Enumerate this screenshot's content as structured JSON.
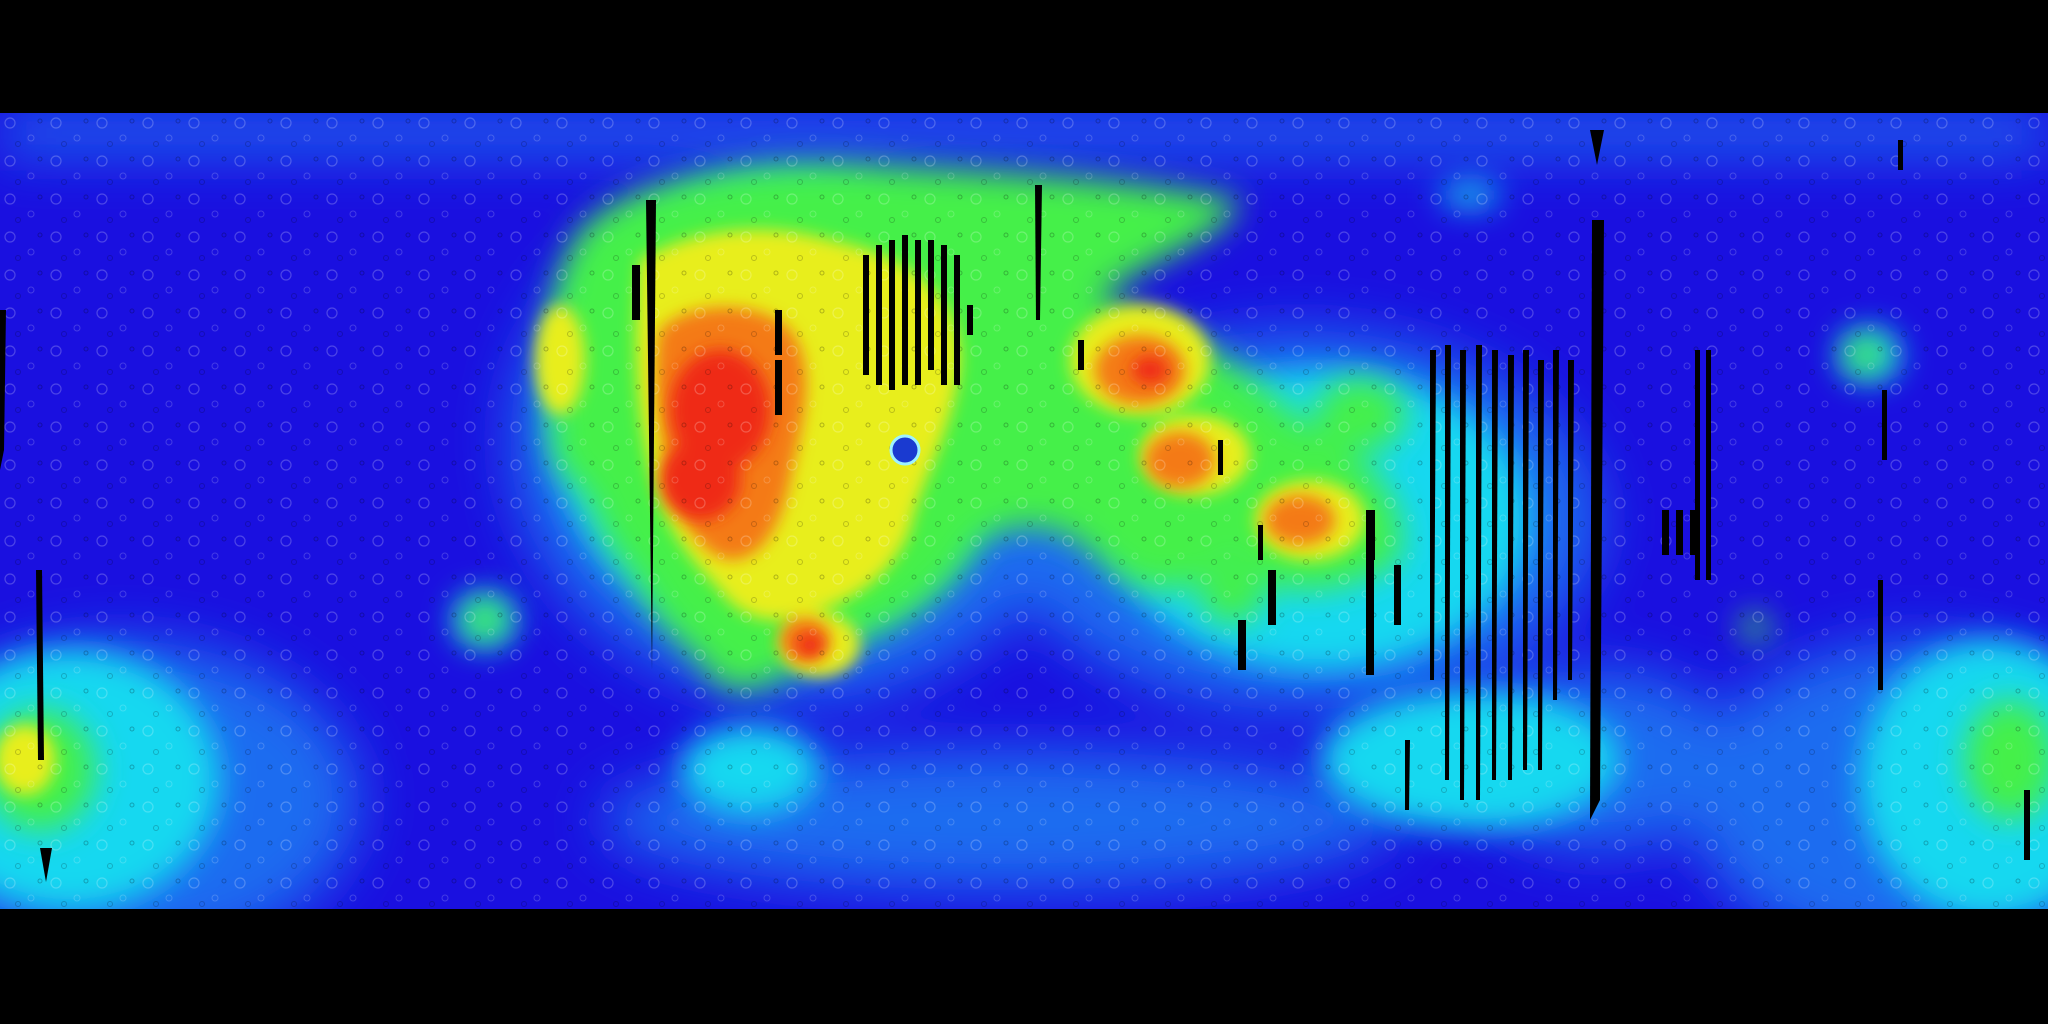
{
  "map": {
    "projection": "equirectangular",
    "colormap": "jet",
    "colors": {
      "background": "#000000",
      "low": "#1a10e0",
      "low_mid": "#1e6cf0",
      "mid": "#19d8f0",
      "mid_high": "#44f04a",
      "high": "#e8ee1a",
      "very_high": "#f47a12",
      "max": "#ef2c12",
      "data_gap": "#000000"
    }
  }
}
